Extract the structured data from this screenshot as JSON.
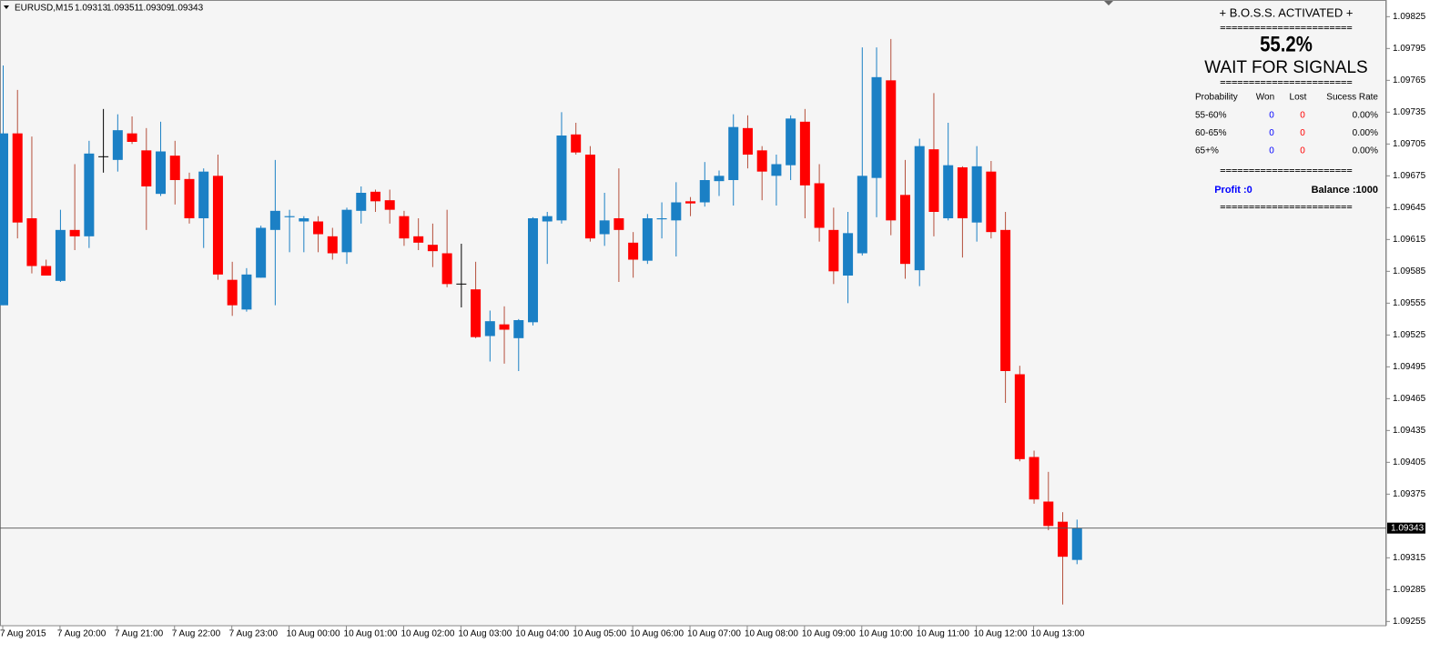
{
  "chart_data": {
    "type": "candlestick",
    "title": "EURUSD,M15",
    "categories": [
      "7 Aug 2015",
      null,
      null,
      null,
      "7 Aug 20:00",
      null,
      null,
      null,
      "7 Aug 21:00",
      null,
      null,
      null,
      "7 Aug 22:00",
      null,
      null,
      null,
      "7 Aug 23:00",
      null,
      null,
      null,
      "10 Aug 00:00",
      null,
      null,
      null,
      "10 Aug 01:00",
      null,
      null,
      null,
      "10 Aug 02:00",
      null,
      null,
      null,
      "10 Aug 03:00",
      null,
      null,
      null,
      "10 Aug 04:00",
      null,
      null,
      null,
      "10 Aug 05:00",
      null,
      null,
      null,
      "10 Aug 06:00",
      null,
      null,
      null,
      "10 Aug 07:00",
      null,
      null,
      null,
      "10 Aug 08:00",
      null,
      null,
      null,
      "10 Aug 09:00",
      null,
      null,
      null,
      "10 Aug 10:00",
      null,
      null,
      null,
      "10 Aug 11:00",
      null,
      null,
      null,
      "10 Aug 12:00",
      null,
      null,
      null,
      "10 Aug 13:00",
      null,
      null,
      null
    ],
    "open": [
      1.09553,
      1.09715,
      1.09635,
      1.0959,
      1.09576,
      1.09624,
      1.09618,
      1.09693,
      1.0969,
      1.09715,
      1.09699,
      1.09658,
      1.09694,
      1.09672,
      1.09635,
      1.09675,
      1.09577,
      1.09549,
      1.09579,
      1.09624,
      1.09636,
      1.09632,
      1.09632,
      1.09618,
      1.09603,
      1.09642,
      1.0966,
      1.09652,
      1.09637,
      1.09618,
      1.0961,
      1.09602,
      1.09573,
      1.09568,
      1.09524,
      1.09535,
      1.09522,
      1.09537,
      1.09632,
      1.09633,
      1.09714,
      1.09695,
      1.0962,
      1.09635,
      1.09612,
      1.09595,
      1.09634,
      1.09633,
      1.09651,
      1.0965,
      1.0967,
      1.09671,
      1.0972,
      1.09699,
      1.09675,
      1.09685,
      1.09726,
      1.09668,
      1.09624,
      1.09581,
      1.09602,
      1.09673,
      1.09765,
      1.09657,
      1.09586,
      1.097,
      1.09635,
      1.09683,
      1.09631,
      1.09679,
      1.09624,
      1.09488,
      1.0941,
      1.09368,
      1.09349,
      1.09313
    ],
    "high": [
      1.09779,
      1.09756,
      1.09712,
      1.09596,
      1.09643,
      1.09686,
      1.09708,
      1.09738,
      1.09733,
      1.09731,
      1.0972,
      1.09726,
      1.09708,
      1.09678,
      1.09682,
      1.09695,
      1.09594,
      1.09588,
      1.09628,
      1.0969,
      1.09643,
      1.09637,
      1.09637,
      1.09626,
      1.09645,
      1.09665,
      1.09662,
      1.09662,
      1.09642,
      1.09635,
      1.0963,
      1.09643,
      1.09611,
      1.09594,
      1.09548,
      1.09552,
      1.0954,
      1.09636,
      1.09641,
      1.09735,
      1.09725,
      1.09703,
      1.09659,
      1.09682,
      1.09622,
      1.09639,
      1.0965,
      1.09669,
      1.09655,
      1.09688,
      1.0968,
      1.09733,
      1.09732,
      1.09703,
      1.09695,
      1.09732,
      1.09738,
      1.09686,
      1.09645,
      1.09641,
      1.09796,
      1.09796,
      1.09804,
      1.0969,
      1.0971,
      1.09753,
      1.09725,
      1.09684,
      1.09703,
      1.09689,
      1.09641,
      1.09496,
      1.09416,
      1.09396,
      1.09358,
      1.09351
    ],
    "low": [
      1.09553,
      1.09616,
      1.09583,
      1.09581,
      1.09575,
      1.09605,
      1.09607,
      1.09678,
      1.09679,
      1.09705,
      1.09624,
      1.09656,
      1.09648,
      1.0963,
      1.09607,
      1.09577,
      1.09543,
      1.09547,
      1.09579,
      1.09553,
      1.09603,
      1.09603,
      1.09603,
      1.09596,
      1.09592,
      1.0963,
      1.09641,
      1.0963,
      1.09609,
      1.09605,
      1.09589,
      1.0957,
      1.09551,
      1.09522,
      1.095,
      1.09498,
      1.09491,
      1.09534,
      1.09592,
      1.0963,
      1.09695,
      1.09613,
      1.09609,
      1.09575,
      1.09579,
      1.09592,
      1.09616,
      1.09599,
      1.09637,
      1.09646,
      1.09656,
      1.09647,
      1.09682,
      1.09652,
      1.09647,
      1.09671,
      1.09635,
      1.09613,
      1.09573,
      1.09555,
      1.096,
      1.09636,
      1.09619,
      1.09578,
      1.09571,
      1.09618,
      1.09633,
      1.09598,
      1.09613,
      1.09616,
      1.09461,
      1.09406,
      1.09366,
      1.09341,
      1.09271,
      1.09309
    ],
    "close": [
      1.09715,
      1.09631,
      1.0959,
      1.09581,
      1.09624,
      1.09618,
      1.09696,
      1.09693,
      1.09718,
      1.09707,
      1.09665,
      1.09698,
      1.09671,
      1.09635,
      1.09679,
      1.09582,
      1.09553,
      1.09582,
      1.09626,
      1.09642,
      1.09637,
      1.09635,
      1.0962,
      1.09602,
      1.09643,
      1.09659,
      1.09651,
      1.09643,
      1.09616,
      1.09612,
      1.09604,
      1.09573,
      1.09573,
      1.09523,
      1.09538,
      1.0953,
      1.09539,
      1.09635,
      1.09637,
      1.09713,
      1.09697,
      1.09616,
      1.09633,
      1.09624,
      1.09596,
      1.09635,
      1.09635,
      1.0965,
      1.09649,
      1.09671,
      1.09675,
      1.09721,
      1.09695,
      1.09679,
      1.09686,
      1.09729,
      1.09666,
      1.09626,
      1.09585,
      1.09621,
      1.09675,
      1.09768,
      1.09633,
      1.09592,
      1.09703,
      1.09641,
      1.09685,
      1.09635,
      1.09684,
      1.09622,
      1.09491,
      1.09408,
      1.0937,
      1.09345,
      1.09316,
      1.09343
    ],
    "up_color": "#1b80c5",
    "down_color": "#ff0000",
    "down_wick_color": "#b5503c",
    "doji_color": "#000000",
    "ylim": [
      1.09251,
      1.09839
    ],
    "yticks": [
      1.09825,
      1.09795,
      1.09765,
      1.09735,
      1.09705,
      1.09675,
      1.09645,
      1.09615,
      1.09585,
      1.09555,
      1.09525,
      1.09495,
      1.09465,
      1.09435,
      1.09405,
      1.09375,
      1.09315,
      1.09285,
      1.09255
    ],
    "grid": false
  },
  "panel": {
    "title": "+ B.O.S.S. ACTIVATED +",
    "separators": [
      "=======================",
      "=======================",
      "=======================",
      "======================="
    ],
    "percent": "55.2%",
    "status": "WAIT FOR SIGNALS",
    "table": {
      "header": [
        "Probability",
        "Won",
        "Lost",
        "Sucess Rate"
      ],
      "rows": [
        [
          "55-60%",
          "0",
          "0",
          "0.00%"
        ],
        [
          "60-65%",
          "0",
          "0",
          "0.00%"
        ],
        [
          "65+%",
          "0",
          "0",
          "0.00%"
        ]
      ]
    },
    "profit": "Profit :0",
    "balance": "Balance :1000"
  }
}
